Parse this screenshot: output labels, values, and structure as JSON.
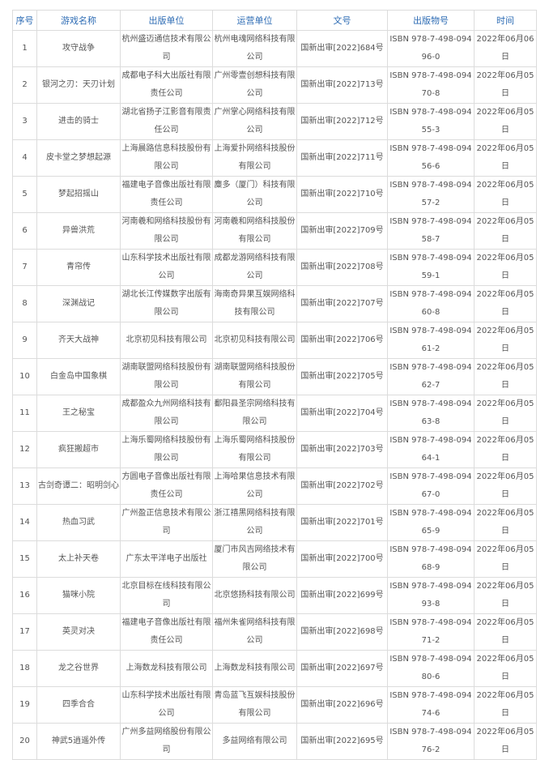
{
  "headers": [
    "序号",
    "游戏名称",
    "出版单位",
    "运营单位",
    "文号",
    "出版物号",
    "时间"
  ],
  "rows": [
    {
      "no": "1",
      "name": "攻守战争",
      "publisher": "杭州盛迈通信技术有限公司",
      "operator": "杭州电魂网络科技有限公司",
      "approval": "国新出审[2022]684号",
      "isbn": "ISBN 978-7-498-09496-0",
      "date": "2022年06月06日"
    },
    {
      "no": "2",
      "name": "银河之刃：天刃计划",
      "publisher": "成都电子科大出版社有限责任公司",
      "operator": "广州零壹创想科技有限公司",
      "approval": "国新出审[2022]713号",
      "isbn": "ISBN 978-7-498-09470-8",
      "date": "2022年06月05日"
    },
    {
      "no": "3",
      "name": "进击的骑士",
      "publisher": "湖北省扬子江影音有限责任公司",
      "operator": "广州掌心网络科技有限公司",
      "approval": "国新出审[2022]712号",
      "isbn": "ISBN 978-7-498-09455-3",
      "date": "2022年06月05日"
    },
    {
      "no": "4",
      "name": "皮卡堂之梦想起源",
      "publisher": "上海晨路信息科技股份有限公司",
      "operator": "上海爱扑网络科技股份有限公司",
      "approval": "国新出审[2022]711号",
      "isbn": "ISBN 978-7-498-09456-6",
      "date": "2022年06月05日"
    },
    {
      "no": "5",
      "name": "梦起招摇山",
      "publisher": "福建电子音像出版社有限责任公司",
      "operator": "麋多（厦门）科技有限公司",
      "approval": "国新出审[2022]710号",
      "isbn": "ISBN 978-7-498-09457-2",
      "date": "2022年06月05日"
    },
    {
      "no": "6",
      "name": "异兽洪荒",
      "publisher": "河南羲和网络科技股份有限公司",
      "operator": "河南羲和网络科技股份有限公司",
      "approval": "国新出审[2022]709号",
      "isbn": "ISBN 978-7-498-09458-7",
      "date": "2022年06月05日"
    },
    {
      "no": "7",
      "name": "青帘传",
      "publisher": "山东科学技术出版社有限公司",
      "operator": "成都龙游网络科技有限公司",
      "approval": "国新出审[2022]708号",
      "isbn": "ISBN 978-7-498-09459-1",
      "date": "2022年06月05日"
    },
    {
      "no": "8",
      "name": "深渊战记",
      "publisher": "湖北长江传媒数字出版有限公司",
      "operator": "海南奇异果互娱网络科技有限公司",
      "approval": "国新出审[2022]707号",
      "isbn": "ISBN 978-7-498-09460-8",
      "date": "2022年06月05日"
    },
    {
      "no": "9",
      "name": "齐天大战神",
      "publisher": "北京初见科技有限公司",
      "operator": "北京初见科技有限公司",
      "approval": "国新出审[2022]706号",
      "isbn": "ISBN 978-7-498-09461-2",
      "date": "2022年06月05日"
    },
    {
      "no": "10",
      "name": "白金岛中国象棋",
      "publisher": "湖南联盟网络科技股份有限公司",
      "operator": "湖南联盟网络科技股份有限公司",
      "approval": "国新出审[2022]705号",
      "isbn": "ISBN 978-7-498-09462-7",
      "date": "2022年06月05日"
    },
    {
      "no": "11",
      "name": "王之秘宝",
      "publisher": "成都盈众九州网络科技有限公司",
      "operator": "鄱阳县圣宗网络科技有限公司",
      "approval": "国新出审[2022]704号",
      "isbn": "ISBN 978-7-498-09463-8",
      "date": "2022年06月05日"
    },
    {
      "no": "12",
      "name": "疯狂搬超市",
      "publisher": "上海乐蜀网络科技股份有限公司",
      "operator": "上海乐蜀网络科技股份有限公司",
      "approval": "国新出审[2022]703号",
      "isbn": "ISBN 978-7-498-09464-1",
      "date": "2022年06月05日"
    },
    {
      "no": "13",
      "name": "古剑奇谭二：昭明剑心",
      "publisher": "方圆电子音像出版社有限责任公司",
      "operator": "上海哈果信息技术有限公司",
      "approval": "国新出审[2022]702号",
      "isbn": "ISBN 978-7-498-09467-0",
      "date": "2022年06月05日"
    },
    {
      "no": "14",
      "name": "热血习武",
      "publisher": "广州盈正信息技术有限公司",
      "operator": "浙江禧黑网络科技有限公司",
      "approval": "国新出审[2022]701号",
      "isbn": "ISBN 978-7-498-09465-9",
      "date": "2022年06月05日"
    },
    {
      "no": "15",
      "name": "太上补天卷",
      "publisher": "广东太平洋电子出版社",
      "operator": "厦门市风吉网络技术有限公司",
      "approval": "国新出审[2022]700号",
      "isbn": "ISBN 978-7-498-09468-9",
      "date": "2022年06月05日"
    },
    {
      "no": "16",
      "name": "猫咪小院",
      "publisher": "北京目标在线科技有限公司",
      "operator": "北京悠扬科技有限公司",
      "approval": "国新出审[2022]699号",
      "isbn": "ISBN 978-7-498-09493-8",
      "date": "2022年06月05日"
    },
    {
      "no": "17",
      "name": "英灵对决",
      "publisher": "福建电子音像出版社有限责任公司",
      "operator": "福州朱雀网络科技有限公司",
      "approval": "国新出审[2022]698号",
      "isbn": "ISBN 978-7-498-09471-2",
      "date": "2022年06月05日"
    },
    {
      "no": "18",
      "name": "龙之谷世界",
      "publisher": "上海数龙科技有限公司",
      "operator": "上海数龙科技有限公司",
      "approval": "国新出审[2022]697号",
      "isbn": "ISBN 978-7-498-09480-6",
      "date": "2022年06月05日"
    },
    {
      "no": "19",
      "name": "四季合合",
      "publisher": "山东科学技术出版社有限公司",
      "operator": "青岛蓝飞互娱科技股份有限公司",
      "approval": "国新出审[2022]696号",
      "isbn": "ISBN 978-7-498-09474-6",
      "date": "2022年06月05日"
    },
    {
      "no": "20",
      "name": "神武5逍遥外传",
      "publisher": "广州多益网络股份有限公司",
      "operator": "多益网络有限公司",
      "approval": "国新出审[2022]695号",
      "isbn": "ISBN 978-7-498-09476-2",
      "date": "2022年06月05日"
    }
  ],
  "colors": {
    "header_text": "#2f6db5",
    "body_text": "#555555",
    "border": "#dcdcdc"
  }
}
